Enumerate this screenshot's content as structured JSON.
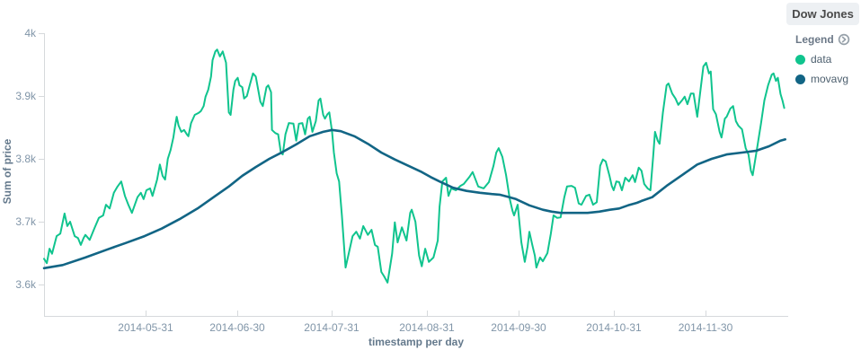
{
  "panel": {
    "title": "Dow Jones"
  },
  "legend": {
    "header": "Legend",
    "toggle_icon": "circle-chevron-right-icon",
    "items": [
      {
        "label": "data",
        "color": "#10c48e"
      },
      {
        "label": "movavg",
        "color": "#126585"
      }
    ]
  },
  "colors": {
    "background": "#ffffff",
    "axis_line": "#d6d9dc",
    "tick_text": "#8095a8",
    "axis_title_text": "#64798c",
    "panel_title_bg": "#edf0f3",
    "data_series": "#10c48e",
    "movavg_series": "#126585"
  },
  "chart_data": {
    "type": "line",
    "title": "Dow Jones",
    "xlabel": "timestamp per day",
    "ylabel": "Sum of price",
    "legend_position": "right",
    "grid": false,
    "xlim": [
      0,
      242
    ],
    "ylim": [
      3550,
      4010
    ],
    "y_ticks": [
      {
        "label": "4k",
        "value": 4000
      },
      {
        "label": "3.9k",
        "value": 3900
      },
      {
        "label": "3.8k",
        "value": 3800
      },
      {
        "label": "3.7k",
        "value": 3700
      },
      {
        "label": "3.6k",
        "value": 3600
      }
    ],
    "x_ticks": [
      {
        "label": "2014-05-31",
        "day": 33
      },
      {
        "label": "2014-06-30",
        "day": 63
      },
      {
        "label": "2014-07-31",
        "day": 94
      },
      {
        "label": "2014-08-31",
        "day": 125
      },
      {
        "label": "2014-09-30",
        "day": 155
      },
      {
        "label": "2014-10-31",
        "day": 186
      },
      {
        "label": "2014-11-30",
        "day": 216
      }
    ],
    "series": [
      {
        "name": "data",
        "color": "#10c48e",
        "points": [
          [
            0,
            3641
          ],
          [
            0.9,
            3634
          ],
          [
            1.8,
            3657
          ],
          [
            2.6,
            3649
          ],
          [
            4.1,
            3677
          ],
          [
            5.3,
            3681
          ],
          [
            6.7,
            3713
          ],
          [
            7.6,
            3693
          ],
          [
            8.5,
            3700
          ],
          [
            10,
            3677
          ],
          [
            11.1,
            3674
          ],
          [
            12,
            3663
          ],
          [
            12.9,
            3674
          ],
          [
            13.5,
            3679
          ],
          [
            14.9,
            3671
          ],
          [
            16.4,
            3689
          ],
          [
            17.9,
            3706
          ],
          [
            19.3,
            3710
          ],
          [
            20.2,
            3727
          ],
          [
            21.4,
            3721
          ],
          [
            22.8,
            3746
          ],
          [
            24,
            3756
          ],
          [
            25.2,
            3764
          ],
          [
            26.4,
            3741
          ],
          [
            27.5,
            3727
          ],
          [
            28.7,
            3714
          ],
          [
            30.5,
            3739
          ],
          [
            31.6,
            3746
          ],
          [
            32.5,
            3736
          ],
          [
            33.4,
            3750
          ],
          [
            34.6,
            3753
          ],
          [
            35.4,
            3741
          ],
          [
            36.9,
            3767
          ],
          [
            37.8,
            3791
          ],
          [
            38.7,
            3773
          ],
          [
            39.5,
            3767
          ],
          [
            40.4,
            3800
          ],
          [
            41.3,
            3814
          ],
          [
            42.2,
            3834
          ],
          [
            42.8,
            3853
          ],
          [
            43.3,
            3867
          ],
          [
            43.9,
            3853
          ],
          [
            44.8,
            3843
          ],
          [
            45.7,
            3846
          ],
          [
            46.6,
            3839
          ],
          [
            47.1,
            3836
          ],
          [
            48,
            3857
          ],
          [
            49.2,
            3870
          ],
          [
            50.4,
            3873
          ],
          [
            51.2,
            3876
          ],
          [
            52.1,
            3884
          ],
          [
            52.7,
            3899
          ],
          [
            53.6,
            3910
          ],
          [
            54.5,
            3931
          ],
          [
            55,
            3957
          ],
          [
            55.9,
            3971
          ],
          [
            56.5,
            3974
          ],
          [
            57.4,
            3963
          ],
          [
            58.3,
            3971
          ],
          [
            59.4,
            3953
          ],
          [
            60.3,
            3874
          ],
          [
            60.9,
            3870
          ],
          [
            61.8,
            3910
          ],
          [
            62.4,
            3924
          ],
          [
            63.2,
            3929
          ],
          [
            63.8,
            3917
          ],
          [
            64.7,
            3914
          ],
          [
            65.3,
            3896
          ],
          [
            66.2,
            3900
          ],
          [
            67.1,
            3917
          ],
          [
            68.2,
            3936
          ],
          [
            69.1,
            3931
          ],
          [
            70.6,
            3891
          ],
          [
            71.4,
            3884
          ],
          [
            72.6,
            3914
          ],
          [
            73.2,
            3917
          ],
          [
            74.1,
            3906
          ],
          [
            74.4,
            3846
          ],
          [
            75.5,
            3841
          ],
          [
            76.4,
            3839
          ],
          [
            77.3,
            3810
          ],
          [
            77.9,
            3807
          ],
          [
            78.8,
            3839
          ],
          [
            79.9,
            3857
          ],
          [
            81.4,
            3856
          ],
          [
            82.3,
            3829
          ],
          [
            83.2,
            3856
          ],
          [
            84.3,
            3857
          ],
          [
            85.2,
            3839
          ],
          [
            86.1,
            3864
          ],
          [
            86.7,
            3867
          ],
          [
            87.6,
            3843
          ],
          [
            88.7,
            3860
          ],
          [
            89.6,
            3893
          ],
          [
            90.2,
            3896
          ],
          [
            91.1,
            3870
          ],
          [
            91.7,
            3864
          ],
          [
            92.5,
            3871
          ],
          [
            93.1,
            3874
          ],
          [
            94,
            3843
          ],
          [
            94.6,
            3810
          ],
          [
            95.5,
            3777
          ],
          [
            96.3,
            3764
          ],
          [
            97.2,
            3710
          ],
          [
            98.4,
            3627
          ],
          [
            99.3,
            3646
          ],
          [
            100.7,
            3677
          ],
          [
            101.9,
            3684
          ],
          [
            103.1,
            3673
          ],
          [
            104.2,
            3693
          ],
          [
            105.7,
            3679
          ],
          [
            106.9,
            3687
          ],
          [
            108,
            3663
          ],
          [
            108.9,
            3660
          ],
          [
            110.1,
            3620
          ],
          [
            111,
            3613
          ],
          [
            112.1,
            3603
          ],
          [
            113.6,
            3649
          ],
          [
            114.5,
            3699
          ],
          [
            115.4,
            3667
          ],
          [
            116.8,
            3691
          ],
          [
            118.3,
            3670
          ],
          [
            119.5,
            3714
          ],
          [
            120,
            3719
          ],
          [
            121.2,
            3700
          ],
          [
            122.4,
            3646
          ],
          [
            123.3,
            3629
          ],
          [
            124.4,
            3657
          ],
          [
            125.6,
            3636
          ],
          [
            127.1,
            3643
          ],
          [
            128.5,
            3670
          ],
          [
            129.1,
            3724
          ],
          [
            130,
            3764
          ],
          [
            131.2,
            3770
          ],
          [
            132,
            3741
          ],
          [
            132.9,
            3753
          ],
          [
            134.4,
            3750
          ],
          [
            135.9,
            3757
          ],
          [
            137,
            3760
          ],
          [
            138.8,
            3771
          ],
          [
            139.9,
            3779
          ],
          [
            141.7,
            3756
          ],
          [
            143.5,
            3753
          ],
          [
            145.2,
            3763
          ],
          [
            146.7,
            3789
          ],
          [
            147.6,
            3810
          ],
          [
            148.4,
            3817
          ],
          [
            149.6,
            3803
          ],
          [
            150.8,
            3774
          ],
          [
            152,
            3736
          ],
          [
            152.9,
            3717
          ],
          [
            153.4,
            3710
          ],
          [
            154.6,
            3727
          ],
          [
            155.8,
            3667
          ],
          [
            156.9,
            3636
          ],
          [
            157.8,
            3660
          ],
          [
            158.4,
            3684
          ],
          [
            159.3,
            3664
          ],
          [
            160.2,
            3646
          ],
          [
            160.7,
            3627
          ],
          [
            161.9,
            3643
          ],
          [
            162.8,
            3637
          ],
          [
            164.3,
            3650
          ],
          [
            165.4,
            3681
          ],
          [
            166.3,
            3710
          ],
          [
            167.5,
            3706
          ],
          [
            168.6,
            3707
          ],
          [
            169.8,
            3739
          ],
          [
            170.7,
            3756
          ],
          [
            172.2,
            3757
          ],
          [
            173.3,
            3754
          ],
          [
            174.5,
            3729
          ],
          [
            175.4,
            3727
          ],
          [
            176.9,
            3741
          ],
          [
            178,
            3743
          ],
          [
            179.2,
            3727
          ],
          [
            180.4,
            3731
          ],
          [
            181.5,
            3789
          ],
          [
            182.4,
            3799
          ],
          [
            183.3,
            3796
          ],
          [
            184.5,
            3774
          ],
          [
            185.3,
            3757
          ],
          [
            185.9,
            3750
          ],
          [
            186.8,
            3764
          ],
          [
            187.7,
            3763
          ],
          [
            188.6,
            3750
          ],
          [
            189.7,
            3770
          ],
          [
            190.9,
            3764
          ],
          [
            192.1,
            3774
          ],
          [
            192.9,
            3763
          ],
          [
            194.1,
            3786
          ],
          [
            195,
            3781
          ],
          [
            195.9,
            3760
          ],
          [
            197,
            3753
          ],
          [
            197.9,
            3750
          ],
          [
            198.8,
            3803
          ],
          [
            199.4,
            3843
          ],
          [
            200.3,
            3829
          ],
          [
            200.9,
            3824
          ],
          [
            202,
            3874
          ],
          [
            203.2,
            3917
          ],
          [
            203.8,
            3920
          ],
          [
            205,
            3904
          ],
          [
            206.1,
            3896
          ],
          [
            207,
            3886
          ],
          [
            208.2,
            3893
          ],
          [
            209.1,
            3899
          ],
          [
            210,
            3887
          ],
          [
            211.1,
            3904
          ],
          [
            212,
            3904
          ],
          [
            213.2,
            3867
          ],
          [
            214,
            3899
          ],
          [
            215.2,
            3947
          ],
          [
            216.1,
            3953
          ],
          [
            217,
            3936
          ],
          [
            217.6,
            3939
          ],
          [
            218.4,
            3879
          ],
          [
            219.3,
            3871
          ],
          [
            220.5,
            3843
          ],
          [
            221.1,
            3834
          ],
          [
            222.2,
            3864
          ],
          [
            222.8,
            3867
          ],
          [
            224,
            3880
          ],
          [
            224.9,
            3884
          ],
          [
            225.8,
            3860
          ],
          [
            226.6,
            3853
          ],
          [
            227.8,
            3847
          ],
          [
            229,
            3817
          ],
          [
            229.9,
            3807
          ],
          [
            230.7,
            3781
          ],
          [
            231.3,
            3774
          ],
          [
            232.5,
            3810
          ],
          [
            234,
            3856
          ],
          [
            235.1,
            3893
          ],
          [
            236.3,
            3917
          ],
          [
            237.5,
            3934
          ],
          [
            238.1,
            3936
          ],
          [
            238.9,
            3924
          ],
          [
            239.5,
            3929
          ],
          [
            240.4,
            3903
          ],
          [
            241,
            3893
          ],
          [
            241.6,
            3881
          ]
        ]
      },
      {
        "name": "movavg",
        "color": "#126585",
        "points": [
          [
            0,
            3626
          ],
          [
            6.1,
            3631
          ],
          [
            13.5,
            3643
          ],
          [
            20.8,
            3656
          ],
          [
            26.6,
            3666
          ],
          [
            32.8,
            3677
          ],
          [
            38.4,
            3689
          ],
          [
            44.2,
            3704
          ],
          [
            50.1,
            3721
          ],
          [
            55.9,
            3741
          ],
          [
            60.3,
            3756
          ],
          [
            64.7,
            3773
          ],
          [
            69.1,
            3787
          ],
          [
            73.5,
            3800
          ],
          [
            77.9,
            3811
          ],
          [
            82.3,
            3823
          ],
          [
            86.7,
            3836
          ],
          [
            91.1,
            3843
          ],
          [
            94,
            3846
          ],
          [
            96.9,
            3844
          ],
          [
            101.3,
            3836
          ],
          [
            105.7,
            3824
          ],
          [
            110.1,
            3810
          ],
          [
            114.5,
            3799
          ],
          [
            118.9,
            3789
          ],
          [
            123.3,
            3779
          ],
          [
            126.2,
            3771
          ],
          [
            129.1,
            3764
          ],
          [
            133.5,
            3754
          ],
          [
            137.9,
            3749
          ],
          [
            142.3,
            3746
          ],
          [
            146.1,
            3744
          ],
          [
            148.7,
            3743
          ],
          [
            151.1,
            3740
          ],
          [
            154,
            3736
          ],
          [
            158.4,
            3726
          ],
          [
            162.8,
            3719
          ],
          [
            165.7,
            3716
          ],
          [
            168.6,
            3714
          ],
          [
            173,
            3714
          ],
          [
            177.4,
            3714
          ],
          [
            181.2,
            3716
          ],
          [
            184.7,
            3719
          ],
          [
            187.7,
            3721
          ],
          [
            190.6,
            3726
          ],
          [
            193.5,
            3730
          ],
          [
            195,
            3733
          ],
          [
            198.5,
            3739
          ],
          [
            203.2,
            3757
          ],
          [
            208.2,
            3774
          ],
          [
            213.2,
            3791
          ],
          [
            217.9,
            3800
          ],
          [
            222.8,
            3807
          ],
          [
            227.8,
            3810
          ],
          [
            232.5,
            3813
          ],
          [
            236.6,
            3820
          ],
          [
            240.4,
            3829
          ],
          [
            241.9,
            3831
          ]
        ]
      }
    ]
  }
}
